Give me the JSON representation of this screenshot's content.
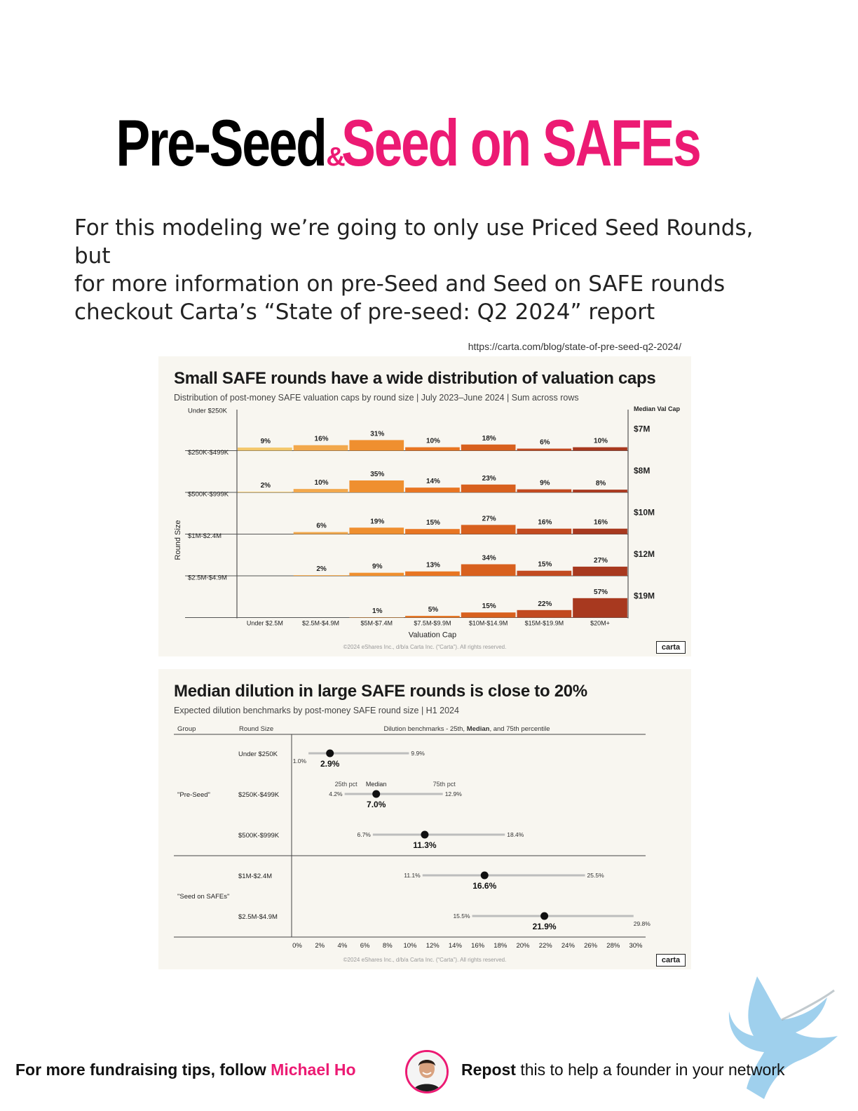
{
  "title": {
    "part1": "Pre-Seed",
    "amp": "&",
    "part2": "Seed on SAFEs"
  },
  "intro": {
    "line1": "For this modeling we’re going to only use Priced Seed Rounds, but",
    "line2": "for more information on pre-Seed and Seed on SAFE rounds",
    "line3": "checkout Carta’s “State of pre-seed: Q2 2024” report"
  },
  "source_url": "https://carta.com/blog/state-of-pre-seed-q2-2024/",
  "colors": {
    "pink": "#ec1a73",
    "card_bg": "#f8f6f0"
  },
  "chart_data": [
    {
      "type": "bar",
      "title": "Small SAFE rounds have a wide distribution of valuation caps",
      "subtitle": "Distribution of post-money SAFE valuation caps by round size | July 2023–June 2024 | Sum across rows",
      "xlabel": "Valuation Cap",
      "ylabel": "Round Size",
      "categories": [
        "Under $2.5M",
        "$2.5M-$4.9M",
        "$5M-$7.4M",
        "$7.5M-$9.9M",
        "$10M-$14.9M",
        "$15M-$19.9M",
        "$20M+"
      ],
      "median_header": "Median Val Cap",
      "rows": [
        {
          "name": "Under $250K",
          "values": [
            9,
            16,
            31,
            10,
            18,
            6,
            10
          ],
          "labels": [
            "9%",
            "16%",
            "31%",
            "10%",
            "18%",
            "6%",
            "10%"
          ],
          "median": "$7M"
        },
        {
          "name": "$250K-$499K",
          "values": [
            2,
            10,
            35,
            14,
            23,
            9,
            8
          ],
          "labels": [
            "2%",
            "10%",
            "35%",
            "14%",
            "23%",
            "9%",
            "8%"
          ],
          "median": "$8M"
        },
        {
          "name": "$500K-$999K",
          "values": [
            0,
            6,
            19,
            15,
            27,
            16,
            16
          ],
          "labels": [
            "",
            "6%",
            "19%",
            "15%",
            "27%",
            "16%",
            "16%"
          ],
          "median": "$10M"
        },
        {
          "name": "$1M-$2.4M",
          "values": [
            0,
            2,
            9,
            13,
            34,
            15,
            27
          ],
          "labels": [
            "",
            "2%",
            "9%",
            "13%",
            "34%",
            "15%",
            "27%"
          ],
          "median": "$12M"
        },
        {
          "name": "$2.5M-$4.9M",
          "values": [
            0,
            0,
            1,
            5,
            15,
            22,
            57
          ],
          "labels": [
            "",
            "",
            "1%",
            "5%",
            "15%",
            "22%",
            "57%"
          ],
          "median": "$19M"
        }
      ],
      "bar_colors": [
        "#f3c76b",
        "#f2a84c",
        "#ef8f2f",
        "#e87522",
        "#d8601e",
        "#c24a20",
        "#a8391f"
      ],
      "copyright": "©2024 eShares Inc., d/b/a Carta Inc. (“Carta”). All rights reserved.",
      "logo": "carta"
    },
    {
      "type": "range",
      "title": "Median dilution in large SAFE rounds is close to 20%",
      "subtitle": "Expected dilution benchmarks by post-money SAFE round size | H1 2024",
      "col_group": "Group",
      "col_round": "Round Size",
      "col_bench_pre": "Dilution benchmarks - 25th, ",
      "col_bench_bold": "Median",
      "col_bench_post": ", and 75th percentile",
      "xlim": [
        0,
        30
      ],
      "xticks": [
        "0%",
        "2%",
        "4%",
        "6%",
        "8%",
        "10%",
        "12%",
        "14%",
        "16%",
        "18%",
        "20%",
        "22%",
        "24%",
        "26%",
        "28%",
        "30%"
      ],
      "groups": [
        {
          "name": "\"Pre-Seed\""
        },
        {
          "name": "\"Seed on SAFEs\""
        }
      ],
      "legend": {
        "p25": "25th pct",
        "median": "Median",
        "p75": "75th pct"
      },
      "rows": [
        {
          "round": "Under $250K",
          "p25": 1.0,
          "median": 2.9,
          "p75": 9.9,
          "p25_label": "1.0%",
          "median_label": "2.9%",
          "p75_label": "9.9%"
        },
        {
          "round": "$250K-$499K",
          "p25": 4.2,
          "median": 7.0,
          "p75": 12.9,
          "p25_label": "4.2%",
          "median_label": "7.0%",
          "p75_label": "12.9%"
        },
        {
          "round": "$500K-$999K",
          "p25": 6.7,
          "median": 11.3,
          "p75": 18.4,
          "p25_label": "6.7%",
          "median_label": "11.3%",
          "p75_label": "18.4%"
        },
        {
          "round": "$1M-$2.4M",
          "p25": 11.1,
          "median": 16.6,
          "p75": 25.5,
          "p25_label": "11.1%",
          "median_label": "16.6%",
          "p75_label": "25.5%"
        },
        {
          "round": "$2.5M-$4.9M",
          "p25": 15.5,
          "median": 21.9,
          "p75": 29.8,
          "p25_label": "15.5%",
          "median_label": "21.9%",
          "p75_label": "29.8%"
        }
      ],
      "copyright": "©2024 eShares Inc., d/b/a Carta Inc. (“Carta”). All rights reserved.",
      "logo": "carta"
    }
  ],
  "footer": {
    "left_text": "For more fundraising tips, follow ",
    "name": "Michael Ho",
    "right_bold": "Repost",
    "right_text": " this to help a founder in your network"
  }
}
